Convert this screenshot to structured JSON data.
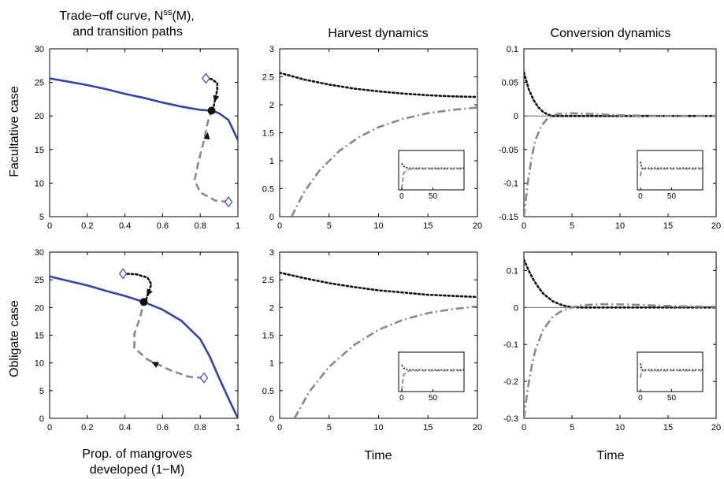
{
  "column_titles": {
    "col1_line1": "Trade−off curve, N",
    "col1_sup": "ss",
    "col1_tail": "(M),",
    "col1_line2": "and transition paths",
    "col2": "Harvest dynamics",
    "col3": "Conversion dynamics"
  },
  "row_labels": {
    "top": "Facultative case",
    "bottom": "Obligate case"
  },
  "x_labels": {
    "col1_line1": "Prop. of mangroves",
    "col1_line2": "developed (1−M)",
    "col2": "Time",
    "col3": "Time"
  },
  "colors": {
    "tradeoff": "#3344aa",
    "dotted": "#111111",
    "dashed": "#888888",
    "marker": "#4455bb"
  },
  "chart_data": [
    {
      "id": "tl",
      "type": "line",
      "title": "Trade−off curve, N^ss(M), and transition paths",
      "ylabel": "Facultative case",
      "xlabel": "",
      "xlim": [
        0,
        1
      ],
      "ylim": [
        5,
        30
      ],
      "xticks": [
        "0",
        "0.2",
        "0.4",
        "0.6",
        "0.8",
        "1"
      ],
      "xtickvals": [
        0,
        0.2,
        0.4,
        0.6,
        0.8,
        1
      ],
      "yticks": [
        "5",
        "10",
        "15",
        "20",
        "25",
        "30"
      ],
      "ytickvals": [
        5,
        10,
        15,
        20,
        25,
        30
      ],
      "series": [
        {
          "style": "solid",
          "points": [
            [
              0,
              25.6
            ],
            [
              0.1,
              25.1
            ],
            [
              0.2,
              24.6
            ],
            [
              0.3,
              24.0
            ],
            [
              0.4,
              23.3
            ],
            [
              0.5,
              22.7
            ],
            [
              0.6,
              22.0
            ],
            [
              0.7,
              21.4
            ],
            [
              0.8,
              20.9
            ],
            [
              0.86,
              20.8
            ],
            [
              0.9,
              20.4
            ],
            [
              0.95,
              19.4
            ],
            [
              1,
              16.4
            ]
          ]
        },
        {
          "style": "dotted",
          "points": [
            [
              0.83,
              25.6
            ],
            [
              0.86,
              25.5
            ],
            [
              0.89,
              24.9
            ],
            [
              0.89,
              23.9
            ],
            [
              0.87,
              21.2
            ]
          ]
        },
        {
          "style": "dashed",
          "points": [
            [
              0.95,
              7.2
            ],
            [
              0.88,
              7.4
            ],
            [
              0.8,
              8.6
            ],
            [
              0.77,
              10.4
            ],
            [
              0.79,
              13.1
            ],
            [
              0.82,
              16.4
            ],
            [
              0.84,
              19.1
            ],
            [
              0.86,
              20.8
            ]
          ]
        }
      ],
      "markers": [
        {
          "kind": "diamond",
          "x": 0.83,
          "y": 25.6
        },
        {
          "kind": "diamond",
          "x": 0.95,
          "y": 7.2
        },
        {
          "kind": "dot",
          "x": 0.86,
          "y": 20.8
        }
      ],
      "arrows": [
        {
          "x1": 0.89,
          "y1": 23.6,
          "x2": 0.875,
          "y2": 22.0,
          "color": "#111111"
        },
        {
          "x1": 0.83,
          "y1": 15.6,
          "x2": 0.84,
          "y2": 17.6,
          "color": "#111111"
        }
      ]
    },
    {
      "id": "tm",
      "type": "line",
      "title": "Harvest dynamics",
      "xlim": [
        0,
        20
      ],
      "ylim": [
        0,
        3
      ],
      "xticks": [
        "0",
        "5",
        "10",
        "15",
        "20"
      ],
      "xtickvals": [
        0,
        5,
        10,
        15,
        20
      ],
      "yticks": [
        "0",
        "0.5",
        "1",
        "1.5",
        "2",
        "2.5",
        "3"
      ],
      "ytickvals": [
        0,
        0.5,
        1,
        1.5,
        2,
        2.5,
        3
      ],
      "series": [
        {
          "style": "dotted",
          "points": [
            [
              0,
              2.57
            ],
            [
              2.5,
              2.45
            ],
            [
              5,
              2.36
            ],
            [
              7.5,
              2.29
            ],
            [
              10,
              2.24
            ],
            [
              12.5,
              2.2
            ],
            [
              15,
              2.17
            ],
            [
              17.5,
              2.15
            ],
            [
              20,
              2.14
            ]
          ]
        },
        {
          "style": "dashdot",
          "points": [
            [
              1.2,
              0
            ],
            [
              2.5,
              0.45
            ],
            [
              4,
              0.82
            ],
            [
              6,
              1.17
            ],
            [
              8,
              1.42
            ],
            [
              10,
              1.6
            ],
            [
              12.5,
              1.75
            ],
            [
              15,
              1.85
            ],
            [
              17.5,
              1.91
            ],
            [
              20,
              1.95
            ]
          ]
        }
      ],
      "inset": {
        "xticks": [
          "0",
          "50"
        ],
        "xtickvals": [
          0,
          50
        ],
        "xlim": [
          -5,
          100
        ]
      }
    },
    {
      "id": "tr",
      "type": "line",
      "title": "Conversion dynamics",
      "xlim": [
        0,
        20
      ],
      "ylim": [
        -0.15,
        0.1
      ],
      "xticks": [
        "0",
        "5",
        "10",
        "15",
        "20"
      ],
      "xtickvals": [
        0,
        5,
        10,
        15,
        20
      ],
      "yticks": [
        "-0.15",
        "-0.1",
        "-0.05",
        "0",
        "0.05",
        "0.1"
      ],
      "ytickvals": [
        -0.15,
        -0.1,
        -0.05,
        0,
        0.05,
        0.1
      ],
      "zero_line": true,
      "series": [
        {
          "style": "dotted",
          "points": [
            [
              0,
              0.065
            ],
            [
              0.5,
              0.04
            ],
            [
              1,
              0.024
            ],
            [
              1.5,
              0.013
            ],
            [
              2,
              0.006
            ],
            [
              2.5,
              0.002
            ],
            [
              3,
              0
            ],
            [
              20,
              0
            ]
          ]
        },
        {
          "style": "dashdot",
          "points": [
            [
              0,
              -0.15
            ],
            [
              0.4,
              -0.1
            ],
            [
              0.8,
              -0.062
            ],
            [
              1.2,
              -0.036
            ],
            [
              1.8,
              -0.015
            ],
            [
              2.5,
              -0.003
            ],
            [
              3.5,
              0.003
            ],
            [
              5,
              0.004
            ],
            [
              7,
              0.003
            ],
            [
              10,
              0.001
            ],
            [
              14,
              0
            ],
            [
              20,
              0
            ]
          ]
        }
      ],
      "inset": {
        "xticks": [
          "0",
          "50"
        ],
        "xtickvals": [
          0,
          50
        ],
        "xlim": [
          -5,
          100
        ]
      }
    },
    {
      "id": "bl",
      "type": "line",
      "ylabel": "Obligate case",
      "xlabel": "Prop. of mangroves developed (1−M)",
      "xlim": [
        0,
        1
      ],
      "ylim": [
        0,
        30
      ],
      "xticks": [
        "0",
        "0.2",
        "0.4",
        "0.6",
        "0.8",
        "1"
      ],
      "xtickvals": [
        0,
        0.2,
        0.4,
        0.6,
        0.8,
        1
      ],
      "yticks": [
        "0",
        "5",
        "10",
        "15",
        "20",
        "25",
        "30"
      ],
      "ytickvals": [
        0,
        5,
        10,
        15,
        20,
        25,
        30
      ],
      "series": [
        {
          "style": "solid",
          "points": [
            [
              0,
              25.6
            ],
            [
              0.1,
              24.8
            ],
            [
              0.2,
              24.0
            ],
            [
              0.3,
              23.0
            ],
            [
              0.4,
              22.1
            ],
            [
              0.5,
              21.0
            ],
            [
              0.6,
              19.6
            ],
            [
              0.7,
              17.6
            ],
            [
              0.8,
              14.3
            ],
            [
              0.85,
              11.2
            ],
            [
              0.9,
              7.3
            ],
            [
              0.95,
              3.6
            ],
            [
              1,
              0
            ]
          ]
        },
        {
          "style": "dotted",
          "points": [
            [
              0.39,
              26.1
            ],
            [
              0.46,
              26.0
            ],
            [
              0.52,
              25.4
            ],
            [
              0.54,
              24.2
            ],
            [
              0.51,
              21.2
            ]
          ]
        },
        {
          "style": "dashed",
          "points": [
            [
              0.82,
              7.3
            ],
            [
              0.74,
              7.5
            ],
            [
              0.64,
              8.7
            ],
            [
              0.52,
              10.6
            ],
            [
              0.45,
              12.7
            ],
            [
              0.45,
              15.3
            ],
            [
              0.48,
              18.1
            ],
            [
              0.5,
              21.0
            ]
          ]
        }
      ],
      "markers": [
        {
          "kind": "diamond",
          "x": 0.39,
          "y": 26.1
        },
        {
          "kind": "diamond",
          "x": 0.82,
          "y": 7.3
        },
        {
          "kind": "dot",
          "x": 0.5,
          "y": 21.0
        }
      ],
      "arrows": [
        {
          "x1": 0.53,
          "y1": 23.0,
          "x2": 0.515,
          "y2": 22.0,
          "color": "#111111"
        },
        {
          "x1": 0.6,
          "y1": 9.2,
          "x2": 0.54,
          "y2": 10.2,
          "color": "#111111"
        }
      ]
    },
    {
      "id": "bm",
      "type": "line",
      "xlabel": "Time",
      "xlim": [
        0,
        20
      ],
      "ylim": [
        0,
        3
      ],
      "xticks": [
        "0",
        "5",
        "10",
        "15",
        "20"
      ],
      "xtickvals": [
        0,
        5,
        10,
        15,
        20
      ],
      "yticks": [
        "0",
        "0.5",
        "1",
        "1.5",
        "2",
        "2.5",
        "3"
      ],
      "ytickvals": [
        0,
        0.5,
        1,
        1.5,
        2,
        2.5,
        3
      ],
      "series": [
        {
          "style": "dotted",
          "points": [
            [
              0,
              2.63
            ],
            [
              2.5,
              2.53
            ],
            [
              5,
              2.44
            ],
            [
              7.5,
              2.37
            ],
            [
              10,
              2.31
            ],
            [
              12.5,
              2.27
            ],
            [
              15,
              2.23
            ],
            [
              17.5,
              2.21
            ],
            [
              20,
              2.19
            ]
          ]
        },
        {
          "style": "dashdot",
          "points": [
            [
              1.5,
              0
            ],
            [
              3,
              0.48
            ],
            [
              5,
              0.93
            ],
            [
              7.5,
              1.32
            ],
            [
              10,
              1.6
            ],
            [
              12.5,
              1.78
            ],
            [
              15,
              1.9
            ],
            [
              17.5,
              1.97
            ],
            [
              20,
              2.02
            ]
          ]
        }
      ],
      "inset": {
        "xticks": [
          "0",
          "50"
        ],
        "xtickvals": [
          0,
          50
        ],
        "xlim": [
          -5,
          100
        ]
      }
    },
    {
      "id": "br",
      "type": "line",
      "xlabel": "Time",
      "xlim": [
        0,
        20
      ],
      "ylim": [
        -0.3,
        0.15
      ],
      "xticks": [
        "0",
        "5",
        "10",
        "15",
        "20"
      ],
      "xtickvals": [
        0,
        5,
        10,
        15,
        20
      ],
      "yticks": [
        "-0.3",
        "-0.2",
        "-0.1",
        "0",
        "0.1"
      ],
      "ytickvals": [
        -0.3,
        -0.2,
        -0.1,
        0,
        0.1
      ],
      "zero_line": true,
      "series": [
        {
          "style": "dotted",
          "points": [
            [
              0,
              0.13
            ],
            [
              0.5,
              0.1
            ],
            [
              1,
              0.075
            ],
            [
              1.5,
              0.055
            ],
            [
              2,
              0.038
            ],
            [
              3,
              0.017
            ],
            [
              4,
              0.006
            ],
            [
              5,
              0.001
            ],
            [
              6,
              0
            ],
            [
              20,
              0
            ]
          ]
        },
        {
          "style": "dashdot",
          "points": [
            [
              0,
              -0.3
            ],
            [
              0.4,
              -0.22
            ],
            [
              0.8,
              -0.16
            ],
            [
              1.2,
              -0.115
            ],
            [
              2,
              -0.06
            ],
            [
              3,
              -0.025
            ],
            [
              4,
              -0.008
            ],
            [
              5,
              0
            ],
            [
              6,
              0.006
            ],
            [
              8,
              0.009
            ],
            [
              11,
              0.008
            ],
            [
              14,
              0.005
            ],
            [
              17,
              0.003
            ],
            [
              20,
              0.002
            ]
          ]
        }
      ],
      "inset": {
        "xticks": [
          "0",
          "50"
        ],
        "xtickvals": [
          0,
          50
        ],
        "xlim": [
          -5,
          100
        ]
      }
    }
  ]
}
